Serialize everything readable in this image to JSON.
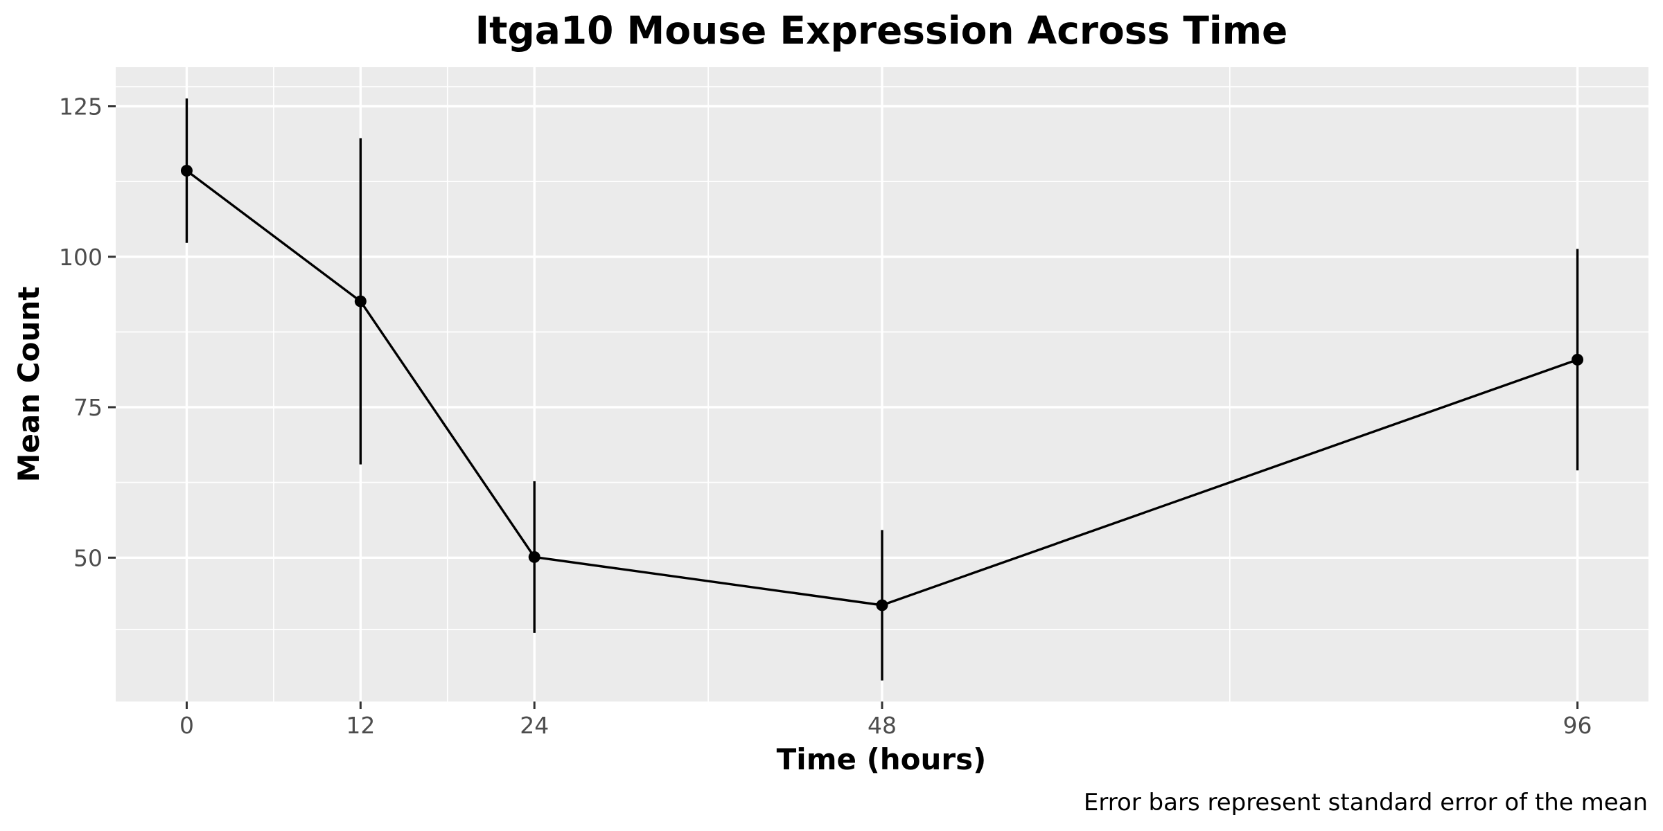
{
  "chart_data": {
    "type": "line",
    "title": "Itga10 Mouse Expression Across Time",
    "xlabel": "Time (hours)",
    "ylabel": "Mean Count",
    "caption": "Error bars represent standard error of the mean",
    "x": [
      0,
      12,
      24,
      48,
      96
    ],
    "series": [
      {
        "values": [
          114.3,
          92.6,
          50.1,
          42.1,
          82.9
        ],
        "error_low": [
          102.3,
          65.5,
          37.5,
          29.6,
          64.5
        ],
        "error_high": [
          126.3,
          119.7,
          62.7,
          54.6,
          101.3
        ]
      }
    ],
    "xticks": [
      "0",
      "12",
      "24",
      "48",
      "96"
    ],
    "yticks": [
      "50",
      "75",
      "100",
      "125"
    ],
    "xlim": [
      -4.9,
      100.9
    ],
    "ylim": [
      26.1,
      131.5
    ],
    "grid": true,
    "background": "#ebebeb",
    "line_color": "#000000"
  }
}
